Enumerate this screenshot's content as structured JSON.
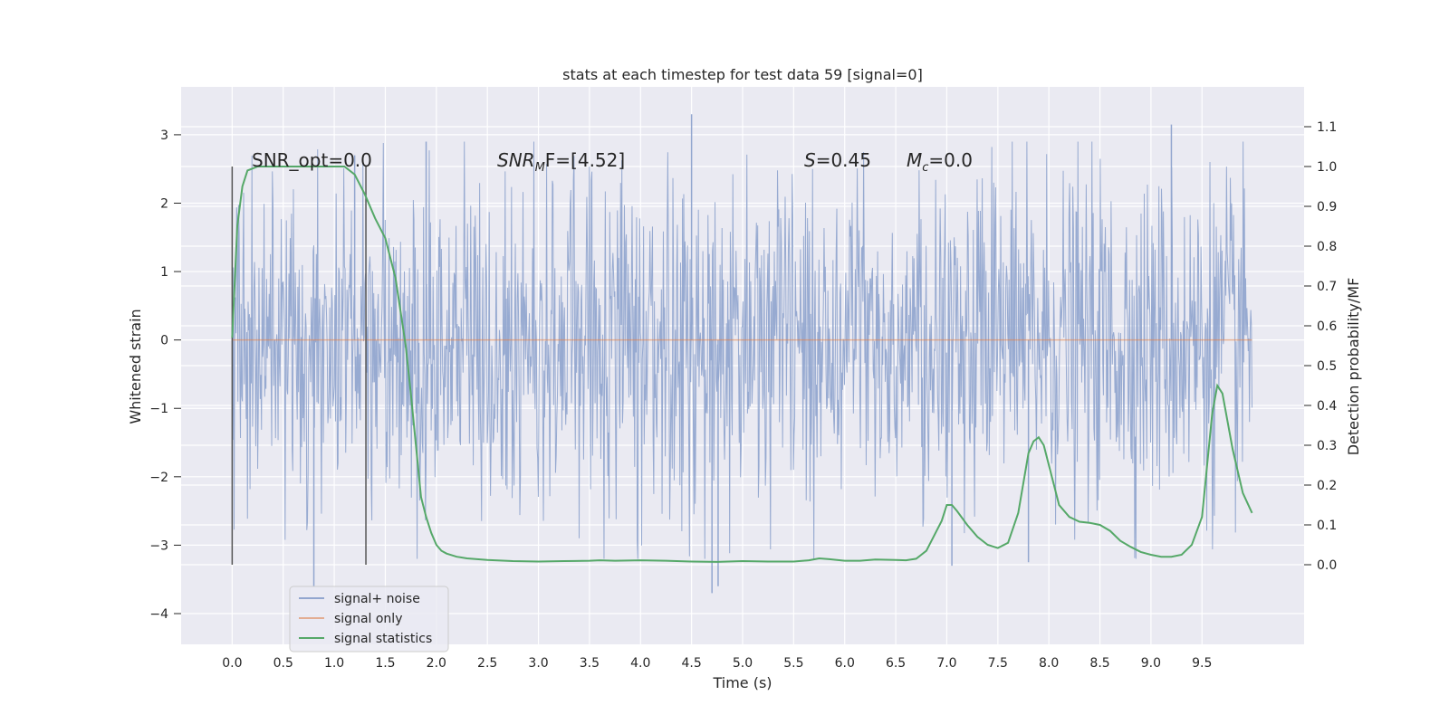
{
  "chart_data": {
    "type": "line",
    "title": "stats at each timestep for test data 59 [signal=0]",
    "xlabel": "Time (s)",
    "ylabel_left": "Whitened strain",
    "ylabel_right": "Detection probability/MF",
    "xlim": [
      -0.5,
      10.5
    ],
    "ylim_left": [
      -4.45,
      3.7
    ],
    "ylim_right": [
      -0.2,
      1.2
    ],
    "grid": true,
    "legend_position": "lower-left",
    "x_ticks": [
      "0.0",
      "0.5",
      "1.0",
      "1.5",
      "2.0",
      "2.5",
      "3.0",
      "3.5",
      "4.0",
      "4.5",
      "5.0",
      "5.5",
      "6.0",
      "6.5",
      "7.0",
      "7.5",
      "8.0",
      "8.5",
      "9.0",
      "9.5"
    ],
    "y_left_ticks": [
      "3",
      "2",
      "1",
      "0",
      "−1",
      "−2",
      "−3",
      "−4"
    ],
    "y_right_ticks": [
      "1.1",
      "1.0",
      "0.9",
      "0.8",
      "0.7",
      "0.6",
      "0.5",
      "0.4",
      "0.3",
      "0.2",
      "0.1",
      "0.0"
    ],
    "vertical_markers_x": [
      0.0,
      1.31
    ],
    "annotations": {
      "snr_opt": "SNR_opt=0.0",
      "snr_mf_prefix": "SNR",
      "snr_mf_sub": "M",
      "snr_mf_suffix": "F=[4.52]",
      "s_label": "S",
      "s_value": "=0.45",
      "mc_label": "M",
      "mc_sub": "c",
      "mc_value": "=0.0"
    },
    "series": [
      {
        "name": "signal+ noise",
        "color": "#92a6cf",
        "axis": "left",
        "x_range": [
          0.0,
          9.99
        ],
        "typical_band": [
          -1.5,
          1.5
        ],
        "extremes": [
          {
            "x": 0.8,
            "y": -3.6
          },
          {
            "x": 1.2,
            "y": 2.7
          },
          {
            "x": 1.9,
            "y": 2.9
          },
          {
            "x": 4.5,
            "y": 3.3
          },
          {
            "x": 4.7,
            "y": -3.7
          },
          {
            "x": 4.76,
            "y": -3.6
          },
          {
            "x": 9.2,
            "y": 3.15
          },
          {
            "x": 7.05,
            "y": -3.3
          },
          {
            "x": 7.8,
            "y": -3.25
          }
        ]
      },
      {
        "name": "signal only",
        "color": "#dd8452",
        "axis": "left",
        "x": [
          0.0,
          9.99
        ],
        "values": [
          0.0,
          0.0
        ]
      },
      {
        "name": "signal statistics",
        "color": "#55a868",
        "axis": "right",
        "x": [
          0.0,
          0.05,
          0.1,
          0.15,
          0.25,
          0.5,
          0.75,
          0.9,
          1.0,
          1.1,
          1.2,
          1.3,
          1.4,
          1.5,
          1.6,
          1.7,
          1.75,
          1.8,
          1.85,
          1.9,
          1.95,
          2.0,
          2.05,
          2.1,
          2.2,
          2.3,
          2.5,
          2.75,
          3.0,
          3.25,
          3.5,
          3.6,
          3.75,
          4.0,
          4.25,
          4.5,
          4.75,
          5.0,
          5.25,
          5.5,
          5.65,
          5.75,
          5.85,
          6.0,
          6.15,
          6.3,
          6.5,
          6.6,
          6.7,
          6.8,
          6.9,
          6.95,
          7.0,
          7.05,
          7.1,
          7.2,
          7.3,
          7.4,
          7.5,
          7.6,
          7.7,
          7.8,
          7.85,
          7.9,
          7.95,
          8.0,
          8.05,
          8.1,
          8.2,
          8.3,
          8.4,
          8.5,
          8.6,
          8.7,
          8.8,
          8.9,
          9.0,
          9.1,
          9.2,
          9.3,
          9.4,
          9.5,
          9.55,
          9.6,
          9.65,
          9.7,
          9.75,
          9.8,
          9.9,
          9.99
        ],
        "values": [
          0.57,
          0.85,
          0.95,
          0.99,
          1.0,
          1.0,
          1.0,
          1.0,
          1.0,
          1.0,
          0.98,
          0.93,
          0.87,
          0.82,
          0.72,
          0.55,
          0.43,
          0.3,
          0.17,
          0.12,
          0.08,
          0.05,
          0.035,
          0.028,
          0.02,
          0.016,
          0.012,
          0.009,
          0.008,
          0.009,
          0.01,
          0.011,
          0.01,
          0.011,
          0.01,
          0.008,
          0.007,
          0.009,
          0.008,
          0.008,
          0.011,
          0.016,
          0.014,
          0.01,
          0.01,
          0.013,
          0.012,
          0.011,
          0.015,
          0.035,
          0.085,
          0.11,
          0.15,
          0.15,
          0.135,
          0.1,
          0.07,
          0.05,
          0.042,
          0.055,
          0.13,
          0.28,
          0.31,
          0.32,
          0.3,
          0.25,
          0.2,
          0.15,
          0.12,
          0.108,
          0.105,
          0.1,
          0.085,
          0.06,
          0.045,
          0.032,
          0.025,
          0.02,
          0.02,
          0.025,
          0.05,
          0.12,
          0.25,
          0.38,
          0.45,
          0.43,
          0.36,
          0.29,
          0.18,
          0.13
        ]
      }
    ]
  }
}
